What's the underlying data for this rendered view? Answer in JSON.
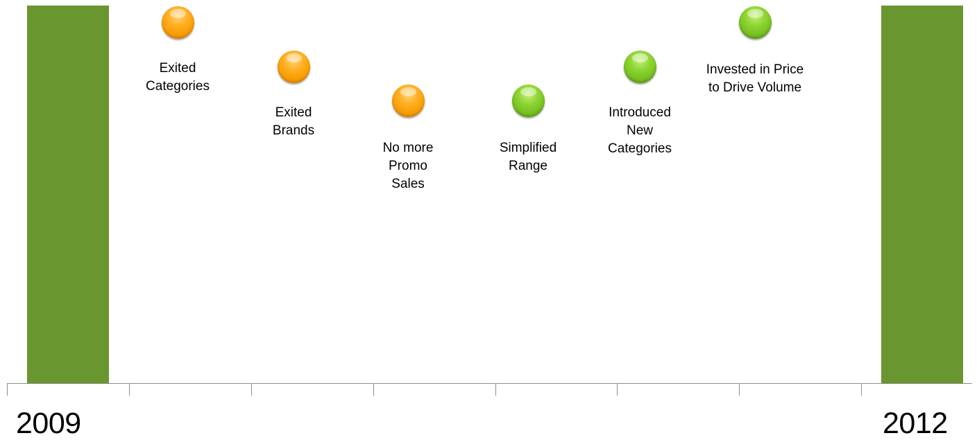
{
  "colors": {
    "bar": "#6a962f",
    "axis": "#8c8c8c",
    "orange_marker": "#f79a00",
    "green_marker": "#79c224"
  },
  "timeline": {
    "start_year": "2009",
    "end_year": "2012"
  },
  "milestones": [
    {
      "label": "Exited\nCategories",
      "color": "orange"
    },
    {
      "label": "Exited\nBrands",
      "color": "orange"
    },
    {
      "label": "No more\nPromo\nSales",
      "color": "orange"
    },
    {
      "label": "Simplified\nRange",
      "color": "green"
    },
    {
      "label": "Introduced\nNew\nCategories",
      "color": "green"
    },
    {
      "label": "Invested in Price\nto Drive Volume",
      "color": "green"
    }
  ]
}
